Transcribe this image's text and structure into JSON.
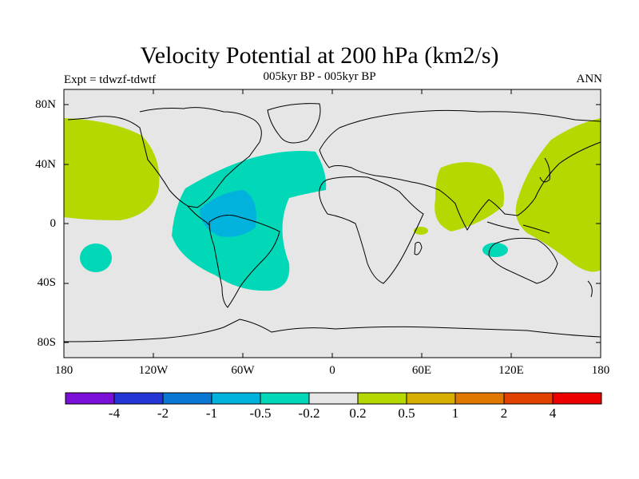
{
  "title": "Velocity Potential at 200 hPa (km2/s)",
  "subtitle": "005kyr BP - 005kyr BP",
  "experiment": "Expt = tdwzf-tdwtf",
  "season": "ANN",
  "lat_ticks": [
    "80N",
    "40N",
    "0",
    "40S",
    "80S"
  ],
  "lon_ticks": [
    "180",
    "120W",
    "60W",
    "0",
    "60E",
    "120E",
    "180"
  ],
  "colorbar": {
    "labels": [
      "-4",
      "-2",
      "-1",
      "-0.5",
      "-0.2",
      "0.2",
      "0.5",
      "1",
      "2",
      "4"
    ],
    "colors": [
      "#7a10d8",
      "#2436d4",
      "#0a78d2",
      "#00b2dc",
      "#00d8b8",
      "#e6e6e6",
      "#b4d800",
      "#d8ae00",
      "#e07800",
      "#e24200",
      "#ee0000"
    ]
  },
  "map": {
    "ocean_color": "#e6e6e6",
    "coast_color": "#000000",
    "positive_color": "#b4d800",
    "negative_color": "#00d8b8",
    "strong_negative_color": "#00b2dc"
  }
}
